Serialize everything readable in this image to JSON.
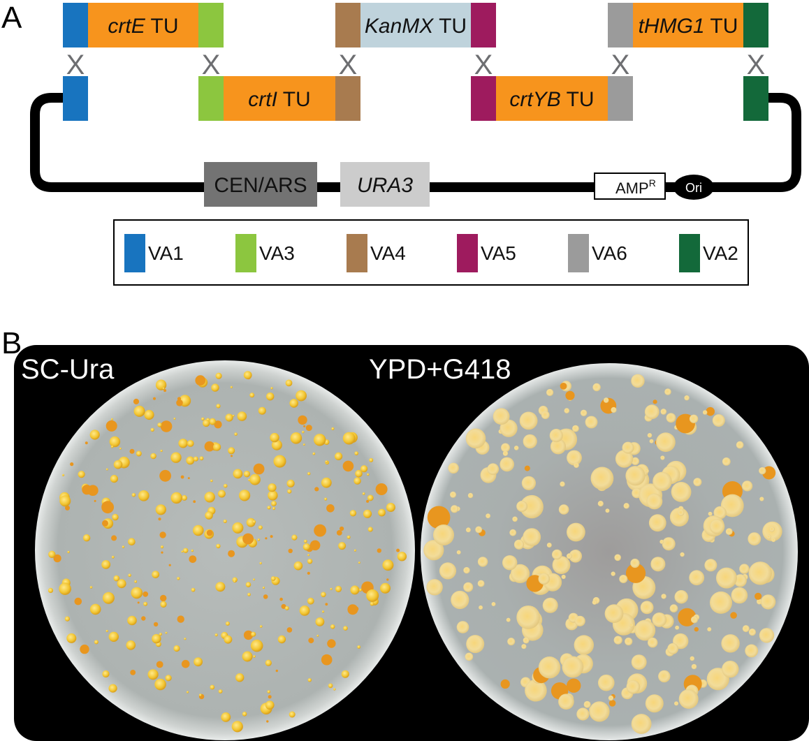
{
  "panel_a": {
    "letter": "A",
    "top_row": [
      {
        "left_cap": "va1",
        "name": "crtE",
        "suffix": " TU",
        "fill": "orange",
        "right_cap": "va3"
      },
      {
        "left_cap": "va4",
        "name": "KanMX",
        "suffix": " TU",
        "fill": "lightblue",
        "right_cap": "va5"
      },
      {
        "left_cap": "va6",
        "name": "tHMG1",
        "suffix": " TU",
        "fill": "orange",
        "right_cap": "va2"
      }
    ],
    "bottom_row": [
      {
        "left_cap": "va3",
        "name": "crtI",
        "suffix": " TU",
        "fill": "orange",
        "right_cap": "va4"
      },
      {
        "left_cap": "va5",
        "name": "crtYB",
        "suffix": " TU",
        "fill": "orange",
        "right_cap": "va6"
      }
    ],
    "crossover_mark": "X",
    "backbone": {
      "cen_ars": "CEN/ARS",
      "ura3": "URA3",
      "ampr_base": "AMP",
      "ampr_sup": "R",
      "ori": "Ori"
    },
    "legend": [
      {
        "key": "va1",
        "label": "VA1"
      },
      {
        "key": "va3",
        "label": "VA3"
      },
      {
        "key": "va4",
        "label": "VA4"
      },
      {
        "key": "va5",
        "label": "VA5"
      },
      {
        "key": "va6",
        "label": "VA6"
      },
      {
        "key": "va2",
        "label": "VA2"
      }
    ]
  },
  "panel_b": {
    "letter": "B",
    "plates": [
      {
        "label": "SC-Ura",
        "colony_style": "small"
      },
      {
        "label": "YPD+G418",
        "colony_style": "fuzzy"
      }
    ]
  },
  "colors": {
    "va1": "#1874bf",
    "va3": "#8cc63f",
    "va4": "#a87b4f",
    "va5": "#9e1b5e",
    "va6": "#9b9b9b",
    "va2": "#13693a",
    "orange": "#f7941d",
    "lightblue": "#bfd3dc",
    "cen_ars": "#737373",
    "ura3": "#cccccc",
    "backbone": "#000000",
    "crossover": "#6d6e71",
    "plate_bg": "#000000",
    "agar": "#b9bdba",
    "colony_yellow": "#f2c531",
    "colony_orange": "#e8961f"
  }
}
